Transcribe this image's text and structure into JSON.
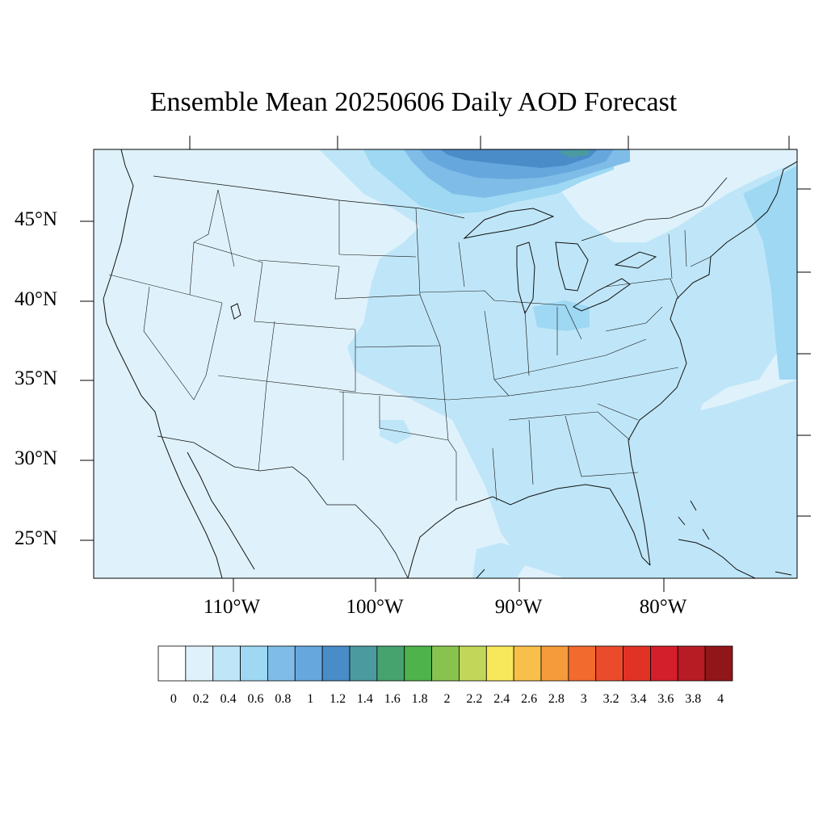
{
  "title": "Ensemble Mean 20250606 Daily AOD Forecast",
  "lat_ticks": [
    "45°N",
    "40°N",
    "35°N",
    "30°N",
    "25°N"
  ],
  "lon_ticks": [
    "110°W",
    "100°W",
    "90°W",
    "80°W"
  ],
  "colorbar": {
    "labels": [
      "0",
      "0.2",
      "0.4",
      "0.6",
      "0.8",
      "1",
      "1.2",
      "1.4",
      "1.6",
      "1.8",
      "2",
      "2.2",
      "2.4",
      "2.6",
      "2.8",
      "3",
      "3.2",
      "3.4",
      "3.6",
      "3.8",
      "4"
    ],
    "colors": [
      "#ffffff",
      "#dff2fb",
      "#bfe6f8",
      "#9ed8f3",
      "#7fbde8",
      "#66a8dd",
      "#4a8cc8",
      "#4b9aa0",
      "#46a36e",
      "#4db34a",
      "#88c34f",
      "#c2d75a",
      "#f6e85a",
      "#f8c04a",
      "#f69b3c",
      "#f26a2e",
      "#ea4c2b",
      "#e03326",
      "#d21f2b",
      "#b71c24",
      "#911619"
    ]
  },
  "colors": {
    "background": "#dff2fb",
    "aod_02_04": "#bfe6f8",
    "aod_04_06": "#9ed8f3",
    "aod_06_08": "#7fbde8",
    "aod_08_10": "#66a8dd",
    "aod_10_12": "#4a8cc8",
    "aod_12_14": "#4b9aa0"
  }
}
